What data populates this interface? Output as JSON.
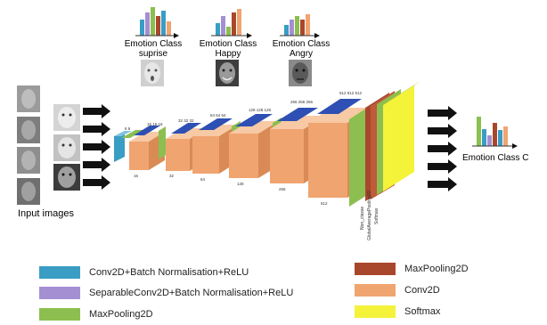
{
  "emotions": [
    {
      "label": "Emotion Class",
      "name": "suprise"
    },
    {
      "label": "Emotion Class",
      "name": "Happy"
    },
    {
      "label": "Emotion Class",
      "name": "Angry"
    }
  ],
  "input_label": "Input images",
  "output_label": "Emotion Class C",
  "layer_dims": {
    "top": [
      "8 8",
      "16 16 16",
      "32 32 32",
      "64 64 64",
      "128 128 128",
      "256 256 256",
      "512 512 512"
    ],
    "bottom": [
      "16",
      "32",
      "64",
      "128",
      "256",
      "512"
    ]
  },
  "vertical_labels": [
    "Non_classe",
    "GlobalAveragePooling2D",
    "Softmax"
  ],
  "legend": [
    {
      "label": "Conv2D+Batch Normalisation+ReLU",
      "color": "#3a9dc4"
    },
    {
      "label": "SeparableConv2D+Batch Normalisation+ReLU",
      "color": "#a58fd3"
    },
    {
      "label": "MaxPooling2D",
      "color": "#8cbf4f"
    },
    {
      "label": "MaxPooling2D",
      "color": "#a9472d"
    },
    {
      "label": "Conv2D",
      "color": "#f0a470"
    },
    {
      "label": "Softmax",
      "color": "#f4f33a"
    }
  ]
}
